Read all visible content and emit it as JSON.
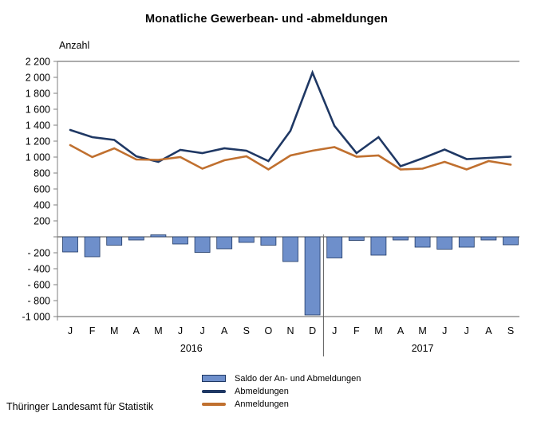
{
  "header": {
    "title": "Monatliche Gewerbean- und -abmeldungen"
  },
  "footer": {
    "source": "Thüringer Landesamt für Statistik"
  },
  "chart_data": {
    "type": "combo-bar-line",
    "title": "Monatliche Gewerbean- und -abmeldungen",
    "ylabel": "Anzahl",
    "xlabel": "",
    "grid": "none",
    "legend_position": "bottom-center",
    "ylim": [
      -1000,
      2200
    ],
    "ytick_step": 200,
    "ytick_labels": [
      "2 200",
      "2 000",
      "1 800",
      "1 600",
      "1 400",
      "1 200",
      "1 000",
      "800",
      "600",
      "400",
      "200",
      "",
      "- 200",
      "- 400",
      "- 600",
      "- 800",
      "-1 000"
    ],
    "categories": [
      "J",
      "F",
      "M",
      "A",
      "M",
      "J",
      "J",
      "A",
      "S",
      "O",
      "N",
      "D",
      "J",
      "F",
      "M",
      "A",
      "M",
      "J",
      "J",
      "A",
      "S"
    ],
    "year_groups": [
      {
        "label": "2016",
        "start": 0,
        "end": 11
      },
      {
        "label": "2017",
        "start": 12,
        "end": 20
      }
    ],
    "series": [
      {
        "name": "Saldo der An- und Abmeldungen",
        "type": "bar",
        "values": [
          -190,
          -250,
          -105,
          -40,
          25,
          -90,
          -195,
          -150,
          -70,
          -105,
          -310,
          -980,
          -265,
          -45,
          -230,
          -40,
          -130,
          -155,
          -130,
          -40,
          -100
        ]
      },
      {
        "name": "Abmeldungen",
        "type": "line",
        "values": [
          1340,
          1250,
          1215,
          1010,
          940,
          1090,
          1050,
          1110,
          1080,
          950,
          1330,
          2060,
          1390,
          1050,
          1250,
          885,
          985,
          1095,
          975,
          990,
          1005
        ]
      },
      {
        "name": "Anmeldungen",
        "type": "line",
        "values": [
          1150,
          1000,
          1110,
          970,
          965,
          1000,
          855,
          960,
          1010,
          845,
          1020,
          1080,
          1125,
          1005,
          1020,
          845,
          855,
          940,
          845,
          950,
          905
        ]
      }
    ],
    "colors": {
      "bar_fill": "#6E8FCB",
      "bar_border": "#1F3864",
      "abmeldungen_line": "#1F3864",
      "anmeldungen_line": "#C0702F",
      "axis_gray": "#7F7F7F",
      "frame_gray": "#595959",
      "text": "#000000"
    }
  }
}
